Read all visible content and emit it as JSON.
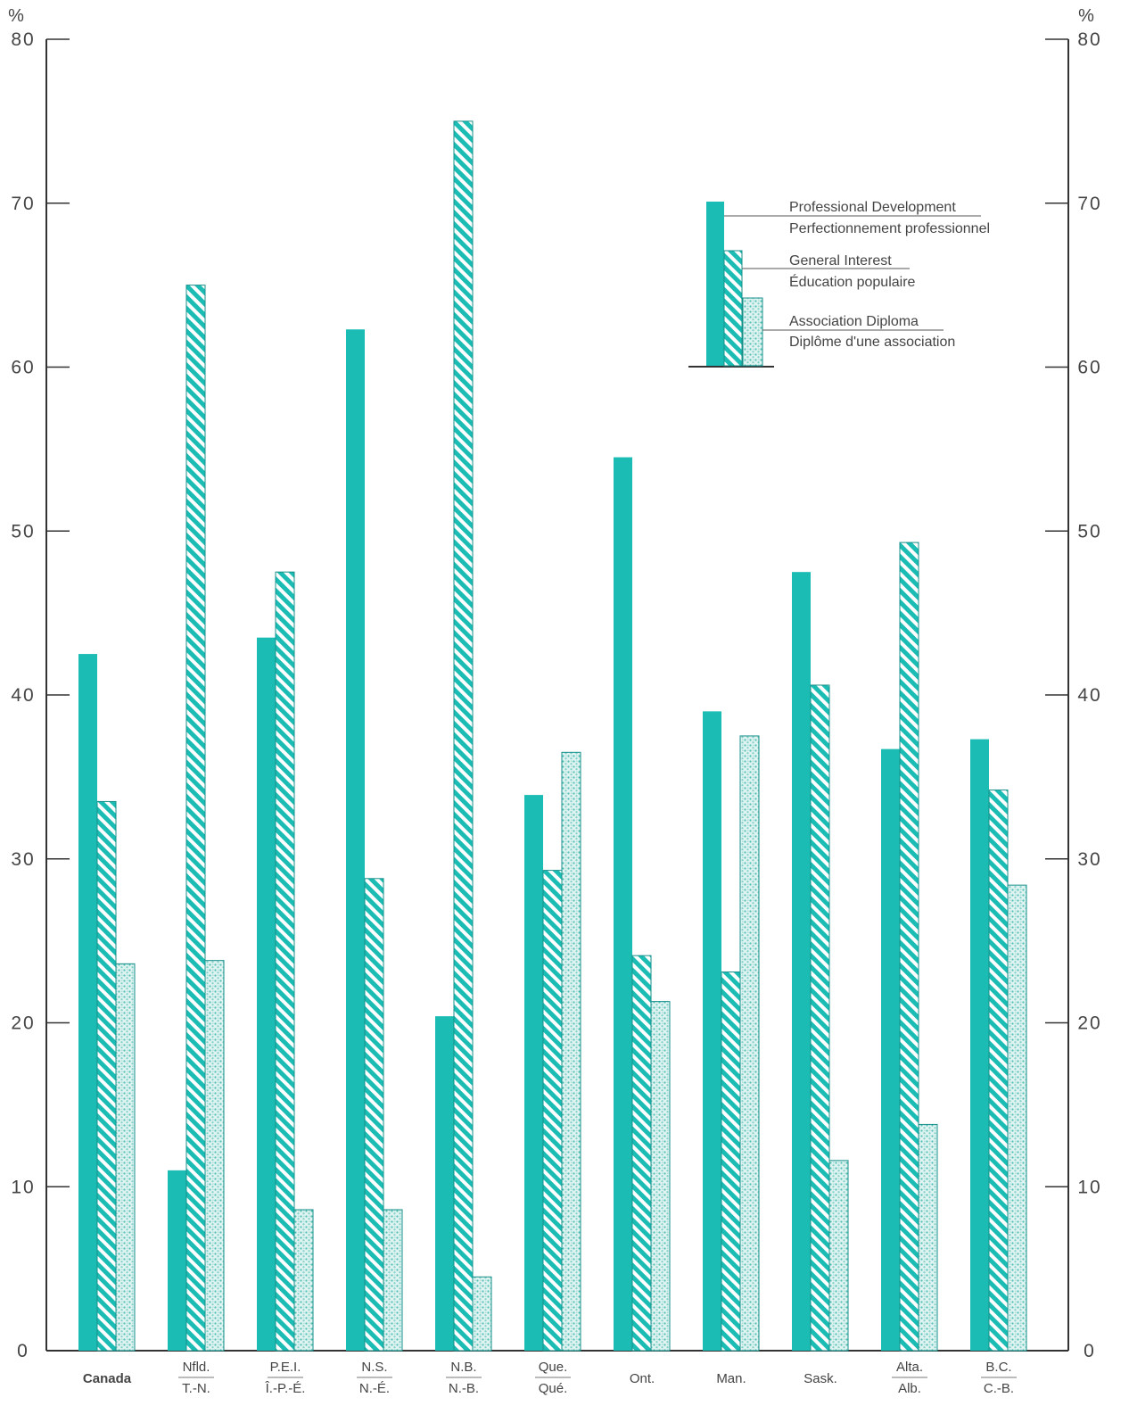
{
  "chart_data": {
    "type": "bar",
    "y_unit_left": "%",
    "y_unit_right": "%",
    "ylim": [
      0,
      80
    ],
    "yticks": [
      "0",
      "10",
      "20",
      "30",
      "40",
      "50",
      "60",
      "70",
      "80"
    ],
    "grid": false,
    "legend_position": "top-right",
    "categories": [
      {
        "line1": "Canada",
        "line2": ""
      },
      {
        "line1": "Nfld.",
        "line2": "T.-N."
      },
      {
        "line1": "P.E.I.",
        "line2": "Î.-P.-É."
      },
      {
        "line1": "N.S.",
        "line2": "N.-É."
      },
      {
        "line1": "N.B.",
        "line2": "N.-B."
      },
      {
        "line1": "Que.",
        "line2": "Qué."
      },
      {
        "line1": "Ont.",
        "line2": ""
      },
      {
        "line1": "Man.",
        "line2": ""
      },
      {
        "line1": "Sask.",
        "line2": ""
      },
      {
        "line1": "Alta.",
        "line2": "Alb."
      },
      {
        "line1": "B.C.",
        "line2": "C.-B."
      }
    ],
    "series": [
      {
        "name": "Professional Development",
        "name_fr": "Perfectionnement professionnel",
        "color": "#1bbcb4",
        "pattern": "solid",
        "values": [
          42.5,
          11.0,
          43.5,
          62.3,
          20.4,
          33.9,
          54.5,
          39.0,
          47.5,
          36.7,
          37.3
        ]
      },
      {
        "name": "General Interest",
        "name_fr": "Éducation populaire",
        "color": "#1bbcb4",
        "pattern": "hatch",
        "values": [
          33.5,
          65.0,
          47.5,
          28.8,
          75.0,
          29.3,
          24.1,
          23.1,
          40.6,
          49.3,
          34.2
        ]
      },
      {
        "name": "Association Diploma",
        "name_fr": "Diplôme d'une association",
        "color": "#8fd4cf",
        "pattern": "stipple",
        "values": [
          23.6,
          23.8,
          8.6,
          8.6,
          4.5,
          36.5,
          21.3,
          37.5,
          11.6,
          13.8,
          28.4
        ]
      }
    ]
  }
}
